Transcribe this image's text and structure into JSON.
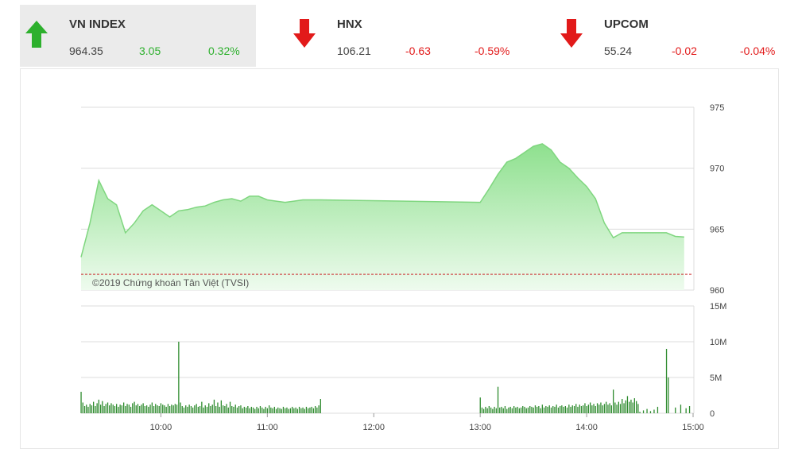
{
  "tickers": [
    {
      "name": "VN INDEX",
      "price": "964.35",
      "change": "3.05",
      "pct": "0.32%",
      "direction": "up"
    },
    {
      "name": "HNX",
      "price": "106.21",
      "change": "-0.63",
      "pct": "-0.59%",
      "direction": "down"
    },
    {
      "name": "UPCOM",
      "price": "55.24",
      "change": "-0.02",
      "pct": "-0.04%",
      "direction": "down"
    }
  ],
  "colors": {
    "up": "#2db02d",
    "down": "#e21a1a",
    "area_top": "#8ee08e",
    "area_bottom": "#eefbee",
    "line": "#7fd67f",
    "volume": "#2e8b2e",
    "reference": "#cc3333"
  },
  "copyright": "©2019 Chứng khoán Tân Việt (TVSI)",
  "chart_data": [
    {
      "type": "area",
      "y_ticks": [
        "975",
        "970",
        "965",
        "960"
      ],
      "ylim": [
        960,
        975
      ],
      "reference": 961.3,
      "x_range": [
        "09:15",
        "15:00"
      ],
      "x": [
        "09:15",
        "09:20",
        "09:25",
        "09:30",
        "09:35",
        "09:40",
        "09:45",
        "09:50",
        "09:55",
        "10:00",
        "10:05",
        "10:10",
        "10:15",
        "10:20",
        "10:25",
        "10:30",
        "10:35",
        "10:40",
        "10:45",
        "10:50",
        "10:55",
        "11:00",
        "11:05",
        "11:10",
        "11:15",
        "11:20",
        "11:25",
        "11:30",
        "13:00",
        "13:05",
        "13:10",
        "13:15",
        "13:20",
        "13:25",
        "13:30",
        "13:35",
        "13:40",
        "13:45",
        "13:50",
        "13:55",
        "14:00",
        "14:05",
        "14:10",
        "14:15",
        "14:20",
        "14:25",
        "14:30",
        "14:35",
        "14:40",
        "14:45",
        "14:50",
        "14:55"
      ],
      "values": [
        962.7,
        965.5,
        969.0,
        967.5,
        967.0,
        964.7,
        965.5,
        966.5,
        967.0,
        966.5,
        966.0,
        966.5,
        966.6,
        966.8,
        966.9,
        967.2,
        967.4,
        967.5,
        967.3,
        967.7,
        967.7,
        967.4,
        967.3,
        967.2,
        967.3,
        967.4,
        967.4,
        967.4,
        967.2,
        968.3,
        969.5,
        970.5,
        970.8,
        971.3,
        971.8,
        972.0,
        971.5,
        970.5,
        970.0,
        969.2,
        968.5,
        967.5,
        965.5,
        964.3,
        964.7,
        964.7,
        964.7,
        964.7,
        964.7,
        964.7,
        964.4,
        964.35
      ]
    },
    {
      "type": "bar",
      "y_ticks": [
        "15M",
        "10M",
        "5M",
        "0"
      ],
      "ylim": [
        0,
        15
      ],
      "x_ticks": [
        "10:00",
        "11:00",
        "12:00",
        "13:00",
        "14:00",
        "15:00"
      ],
      "bars": [
        {
          "t": "09:15",
          "v": 3.0
        },
        {
          "t": "09:16",
          "v": 1.5
        },
        {
          "t": "09:17",
          "v": 1.0
        },
        {
          "t": "09:18",
          "v": 1.2
        },
        {
          "t": "09:19",
          "v": 0.9
        },
        {
          "t": "09:20",
          "v": 1.3
        },
        {
          "t": "09:21",
          "v": 1.1
        },
        {
          "t": "09:22",
          "v": 1.6
        },
        {
          "t": "09:23",
          "v": 1.0
        },
        {
          "t": "09:24",
          "v": 1.4
        },
        {
          "t": "09:25",
          "v": 1.9
        },
        {
          "t": "09:26",
          "v": 1.2
        },
        {
          "t": "09:27",
          "v": 1.7
        },
        {
          "t": "09:28",
          "v": 1.0
        },
        {
          "t": "09:29",
          "v": 1.3
        },
        {
          "t": "09:30",
          "v": 1.5
        },
        {
          "t": "09:31",
          "v": 1.1
        },
        {
          "t": "09:32",
          "v": 1.4
        },
        {
          "t": "09:33",
          "v": 1.2
        },
        {
          "t": "09:34",
          "v": 1.0
        },
        {
          "t": "09:35",
          "v": 1.3
        },
        {
          "t": "09:36",
          "v": 0.9
        },
        {
          "t": "09:37",
          "v": 1.2
        },
        {
          "t": "09:38",
          "v": 1.1
        },
        {
          "t": "09:39",
          "v": 1.5
        },
        {
          "t": "09:40",
          "v": 1.0
        },
        {
          "t": "09:41",
          "v": 1.3
        },
        {
          "t": "09:42",
          "v": 1.2
        },
        {
          "t": "09:43",
          "v": 0.9
        },
        {
          "t": "09:44",
          "v": 1.4
        },
        {
          "t": "09:45",
          "v": 1.6
        },
        {
          "t": "09:46",
          "v": 1.1
        },
        {
          "t": "09:47",
          "v": 1.3
        },
        {
          "t": "09:48",
          "v": 1.0
        },
        {
          "t": "09:49",
          "v": 1.2
        },
        {
          "t": "09:50",
          "v": 1.4
        },
        {
          "t": "09:51",
          "v": 1.0
        },
        {
          "t": "09:52",
          "v": 1.1
        },
        {
          "t": "09:53",
          "v": 0.9
        },
        {
          "t": "09:54",
          "v": 1.2
        },
        {
          "t": "09:55",
          "v": 1.5
        },
        {
          "t": "09:56",
          "v": 1.0
        },
        {
          "t": "09:57",
          "v": 1.3
        },
        {
          "t": "09:58",
          "v": 1.1
        },
        {
          "t": "09:59",
          "v": 1.0
        },
        {
          "t": "10:00",
          "v": 1.4
        },
        {
          "t": "10:01",
          "v": 1.2
        },
        {
          "t": "10:02",
          "v": 1.1
        },
        {
          "t": "10:03",
          "v": 0.9
        },
        {
          "t": "10:04",
          "v": 1.3
        },
        {
          "t": "10:05",
          "v": 1.0
        },
        {
          "t": "10:06",
          "v": 1.2
        },
        {
          "t": "10:07",
          "v": 1.1
        },
        {
          "t": "10:08",
          "v": 1.3
        },
        {
          "t": "10:09",
          "v": 1.2
        },
        {
          "t": "10:10",
          "v": 10.0
        },
        {
          "t": "10:11",
          "v": 1.5
        },
        {
          "t": "10:12",
          "v": 1.0
        },
        {
          "t": "10:13",
          "v": 0.8
        },
        {
          "t": "10:14",
          "v": 1.1
        },
        {
          "t": "10:15",
          "v": 0.9
        },
        {
          "t": "10:16",
          "v": 1.2
        },
        {
          "t": "10:17",
          "v": 1.0
        },
        {
          "t": "10:18",
          "v": 0.8
        },
        {
          "t": "10:19",
          "v": 1.1
        },
        {
          "t": "10:20",
          "v": 1.3
        },
        {
          "t": "10:21",
          "v": 0.9
        },
        {
          "t": "10:22",
          "v": 1.0
        },
        {
          "t": "10:23",
          "v": 1.6
        },
        {
          "t": "10:24",
          "v": 0.8
        },
        {
          "t": "10:25",
          "v": 1.1
        },
        {
          "t": "10:26",
          "v": 0.9
        },
        {
          "t": "10:27",
          "v": 1.4
        },
        {
          "t": "10:28",
          "v": 1.0
        },
        {
          "t": "10:29",
          "v": 1.2
        },
        {
          "t": "10:30",
          "v": 1.9
        },
        {
          "t": "10:31",
          "v": 1.0
        },
        {
          "t": "10:32",
          "v": 1.5
        },
        {
          "t": "10:33",
          "v": 0.9
        },
        {
          "t": "10:34",
          "v": 1.8
        },
        {
          "t": "10:35",
          "v": 1.1
        },
        {
          "t": "10:36",
          "v": 1.0
        },
        {
          "t": "10:37",
          "v": 1.3
        },
        {
          "t": "10:38",
          "v": 0.8
        },
        {
          "t": "10:39",
          "v": 1.6
        },
        {
          "t": "10:40",
          "v": 1.0
        },
        {
          "t": "10:41",
          "v": 0.9
        },
        {
          "t": "10:42",
          "v": 1.2
        },
        {
          "t": "10:43",
          "v": 0.8
        },
        {
          "t": "10:44",
          "v": 1.0
        },
        {
          "t": "10:45",
          "v": 1.1
        },
        {
          "t": "10:46",
          "v": 0.7
        },
        {
          "t": "10:47",
          "v": 0.9
        },
        {
          "t": "10:48",
          "v": 0.8
        },
        {
          "t": "10:49",
          "v": 1.0
        },
        {
          "t": "10:50",
          "v": 0.7
        },
        {
          "t": "10:51",
          "v": 0.9
        },
        {
          "t": "10:52",
          "v": 0.8
        },
        {
          "t": "10:53",
          "v": 0.6
        },
        {
          "t": "10:54",
          "v": 0.9
        },
        {
          "t": "10:55",
          "v": 0.7
        },
        {
          "t": "10:56",
          "v": 1.0
        },
        {
          "t": "10:57",
          "v": 0.8
        },
        {
          "t": "10:58",
          "v": 0.6
        },
        {
          "t": "10:59",
          "v": 0.9
        },
        {
          "t": "11:00",
          "v": 0.7
        },
        {
          "t": "11:01",
          "v": 1.1
        },
        {
          "t": "11:02",
          "v": 0.8
        },
        {
          "t": "11:03",
          "v": 0.7
        },
        {
          "t": "11:04",
          "v": 0.9
        },
        {
          "t": "11:05",
          "v": 0.6
        },
        {
          "t": "11:06",
          "v": 0.8
        },
        {
          "t": "11:07",
          "v": 0.7
        },
        {
          "t": "11:08",
          "v": 0.6
        },
        {
          "t": "11:09",
          "v": 0.9
        },
        {
          "t": "11:10",
          "v": 0.7
        },
        {
          "t": "11:11",
          "v": 0.8
        },
        {
          "t": "11:12",
          "v": 0.6
        },
        {
          "t": "11:13",
          "v": 0.7
        },
        {
          "t": "11:14",
          "v": 0.9
        },
        {
          "t": "11:15",
          "v": 0.7
        },
        {
          "t": "11:16",
          "v": 0.8
        },
        {
          "t": "11:17",
          "v": 0.6
        },
        {
          "t": "11:18",
          "v": 0.9
        },
        {
          "t": "11:19",
          "v": 0.7
        },
        {
          "t": "11:20",
          "v": 0.8
        },
        {
          "t": "11:21",
          "v": 0.6
        },
        {
          "t": "11:22",
          "v": 0.9
        },
        {
          "t": "11:23",
          "v": 0.7
        },
        {
          "t": "11:24",
          "v": 0.8
        },
        {
          "t": "11:25",
          "v": 0.9
        },
        {
          "t": "11:26",
          "v": 0.7
        },
        {
          "t": "11:27",
          "v": 1.0
        },
        {
          "t": "11:28",
          "v": 0.8
        },
        {
          "t": "11:29",
          "v": 1.1
        },
        {
          "t": "11:30",
          "v": 2.0
        },
        {
          "t": "13:00",
          "v": 2.2
        },
        {
          "t": "13:01",
          "v": 0.8
        },
        {
          "t": "13:02",
          "v": 0.6
        },
        {
          "t": "13:03",
          "v": 0.9
        },
        {
          "t": "13:04",
          "v": 0.7
        },
        {
          "t": "13:05",
          "v": 1.0
        },
        {
          "t": "13:06",
          "v": 0.8
        },
        {
          "t": "13:07",
          "v": 0.6
        },
        {
          "t": "13:08",
          "v": 0.9
        },
        {
          "t": "13:09",
          "v": 0.7
        },
        {
          "t": "13:10",
          "v": 3.7
        },
        {
          "t": "13:11",
          "v": 0.8
        },
        {
          "t": "13:12",
          "v": 0.9
        },
        {
          "t": "13:13",
          "v": 0.7
        },
        {
          "t": "13:14",
          "v": 1.0
        },
        {
          "t": "13:15",
          "v": 0.6
        },
        {
          "t": "13:16",
          "v": 0.8
        },
        {
          "t": "13:17",
          "v": 0.9
        },
        {
          "t": "13:18",
          "v": 0.7
        },
        {
          "t": "13:19",
          "v": 1.0
        },
        {
          "t": "13:20",
          "v": 0.8
        },
        {
          "t": "13:21",
          "v": 0.9
        },
        {
          "t": "13:22",
          "v": 0.7
        },
        {
          "t": "13:23",
          "v": 0.8
        },
        {
          "t": "13:24",
          "v": 1.0
        },
        {
          "t": "13:25",
          "v": 0.9
        },
        {
          "t": "13:26",
          "v": 0.7
        },
        {
          "t": "13:27",
          "v": 0.8
        },
        {
          "t": "13:28",
          "v": 1.0
        },
        {
          "t": "13:29",
          "v": 0.9
        },
        {
          "t": "13:30",
          "v": 0.8
        },
        {
          "t": "13:31",
          "v": 1.1
        },
        {
          "t": "13:32",
          "v": 0.9
        },
        {
          "t": "13:33",
          "v": 1.0
        },
        {
          "t": "13:34",
          "v": 0.7
        },
        {
          "t": "13:35",
          "v": 1.2
        },
        {
          "t": "13:36",
          "v": 0.8
        },
        {
          "t": "13:37",
          "v": 1.0
        },
        {
          "t": "13:38",
          "v": 0.9
        },
        {
          "t": "13:39",
          "v": 1.1
        },
        {
          "t": "13:40",
          "v": 0.8
        },
        {
          "t": "13:41",
          "v": 1.0
        },
        {
          "t": "13:42",
          "v": 0.9
        },
        {
          "t": "13:43",
          "v": 1.2
        },
        {
          "t": "13:44",
          "v": 0.8
        },
        {
          "t": "13:45",
          "v": 1.0
        },
        {
          "t": "13:46",
          "v": 1.1
        },
        {
          "t": "13:47",
          "v": 0.9
        },
        {
          "t": "13:48",
          "v": 1.0
        },
        {
          "t": "13:49",
          "v": 0.8
        },
        {
          "t": "13:50",
          "v": 1.2
        },
        {
          "t": "13:51",
          "v": 0.9
        },
        {
          "t": "13:52",
          "v": 1.1
        },
        {
          "t": "13:53",
          "v": 1.0
        },
        {
          "t": "13:54",
          "v": 1.3
        },
        {
          "t": "13:55",
          "v": 0.9
        },
        {
          "t": "13:56",
          "v": 1.2
        },
        {
          "t": "13:57",
          "v": 1.0
        },
        {
          "t": "13:58",
          "v": 1.1
        },
        {
          "t": "13:59",
          "v": 1.4
        },
        {
          "t": "14:00",
          "v": 1.0
        },
        {
          "t": "14:01",
          "v": 1.2
        },
        {
          "t": "14:02",
          "v": 1.5
        },
        {
          "t": "14:03",
          "v": 1.1
        },
        {
          "t": "14:04",
          "v": 1.3
        },
        {
          "t": "14:05",
          "v": 1.0
        },
        {
          "t": "14:06",
          "v": 1.4
        },
        {
          "t": "14:07",
          "v": 1.2
        },
        {
          "t": "14:08",
          "v": 1.5
        },
        {
          "t": "14:09",
          "v": 1.1
        },
        {
          "t": "14:10",
          "v": 1.3
        },
        {
          "t": "14:11",
          "v": 1.6
        },
        {
          "t": "14:12",
          "v": 1.2
        },
        {
          "t": "14:13",
          "v": 1.4
        },
        {
          "t": "14:14",
          "v": 1.1
        },
        {
          "t": "14:15",
          "v": 3.3
        },
        {
          "t": "14:16",
          "v": 1.5
        },
        {
          "t": "14:17",
          "v": 1.2
        },
        {
          "t": "14:18",
          "v": 1.6
        },
        {
          "t": "14:19",
          "v": 1.3
        },
        {
          "t": "14:20",
          "v": 2.0
        },
        {
          "t": "14:21",
          "v": 1.4
        },
        {
          "t": "14:22",
          "v": 1.8
        },
        {
          "t": "14:23",
          "v": 2.4
        },
        {
          "t": "14:24",
          "v": 1.6
        },
        {
          "t": "14:25",
          "v": 1.9
        },
        {
          "t": "14:26",
          "v": 1.5
        },
        {
          "t": "14:27",
          "v": 2.1
        },
        {
          "t": "14:28",
          "v": 1.7
        },
        {
          "t": "14:29",
          "v": 1.3
        },
        {
          "t": "14:30",
          "v": 0.2
        },
        {
          "t": "14:32",
          "v": 0.4
        },
        {
          "t": "14:34",
          "v": 0.6
        },
        {
          "t": "14:36",
          "v": 0.3
        },
        {
          "t": "14:38",
          "v": 0.5
        },
        {
          "t": "14:40",
          "v": 0.9
        },
        {
          "t": "14:45",
          "v": 9.0
        },
        {
          "t": "14:46",
          "v": 5.0
        },
        {
          "t": "14:50",
          "v": 0.8
        },
        {
          "t": "14:53",
          "v": 1.2
        },
        {
          "t": "14:56",
          "v": 0.7
        },
        {
          "t": "14:58",
          "v": 1.0
        }
      ]
    }
  ]
}
